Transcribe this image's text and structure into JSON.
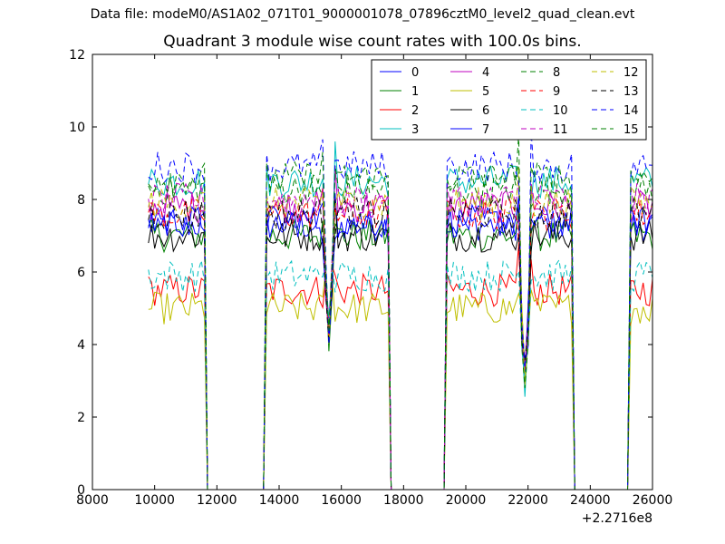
{
  "figure": {
    "suptitle": "Data file: modeM0/AS1A02_071T01_9000001078_07896cztM0_level2_quad_clean.evt"
  },
  "chart_data": {
    "type": "line",
    "title": "Quadrant 3 module wise count rates with 100.0s bins.",
    "xlabel": "",
    "ylabel": "",
    "xlim": [
      8000,
      26000
    ],
    "ylim": [
      0,
      12
    ],
    "x_offset_label": "+2.2716e8",
    "xticks": [
      8000,
      10000,
      12000,
      14000,
      16000,
      18000,
      20000,
      22000,
      24000,
      26000
    ],
    "xtick_labels": [
      "8000",
      "10000",
      "12000",
      "14000",
      "16000",
      "18000",
      "20000",
      "22000",
      "24000",
      "26000"
    ],
    "yticks": [
      0,
      2,
      4,
      6,
      8,
      10,
      12
    ],
    "ytick_labels": [
      "0",
      "2",
      "4",
      "6",
      "8",
      "10",
      "12"
    ],
    "grid": false,
    "legend_position": "top-right",
    "legend_columns": 4,
    "segments": [
      {
        "start": 9800,
        "end": 11600
      },
      {
        "start": 13600,
        "end": 17500
      },
      {
        "start": 19400,
        "end": 23400
      },
      {
        "start": 25300,
        "end": 26000
      }
    ],
    "dropouts": [
      {
        "x": 15600,
        "value": 4.3
      },
      {
        "x": 21900,
        "value": 3.0
      }
    ],
    "series": [
      {
        "name": "0",
        "color": "#0000ff",
        "dash": "solid",
        "level": 7.3
      },
      {
        "name": "1",
        "color": "#008000",
        "dash": "solid",
        "level": 7.0
      },
      {
        "name": "2",
        "color": "#ff0000",
        "dash": "solid",
        "level": 5.5
      },
      {
        "name": "3",
        "color": "#00bfbf",
        "dash": "solid",
        "level": 8.5
      },
      {
        "name": "4",
        "color": "#bf00bf",
        "dash": "solid",
        "level": 7.8
      },
      {
        "name": "5",
        "color": "#bfbf00",
        "dash": "solid",
        "level": 5.0
      },
      {
        "name": "6",
        "color": "#000000",
        "dash": "solid",
        "level": 7.0
      },
      {
        "name": "7",
        "color": "#0000ff",
        "dash": "solid",
        "level": 7.4
      },
      {
        "name": "8",
        "color": "#008000",
        "dash": "dashed",
        "level": 8.3
      },
      {
        "name": "9",
        "color": "#ff0000",
        "dash": "dashed",
        "level": 7.6
      },
      {
        "name": "10",
        "color": "#00bfbf",
        "dash": "dashed",
        "level": 5.9
      },
      {
        "name": "11",
        "color": "#bf00bf",
        "dash": "dashed",
        "level": 8.0
      },
      {
        "name": "12",
        "color": "#bfbf00",
        "dash": "dashed",
        "level": 7.9
      },
      {
        "name": "13",
        "color": "#000000",
        "dash": "dashed",
        "level": 7.6
      },
      {
        "name": "14",
        "color": "#0000ff",
        "dash": "dashed",
        "level": 8.9
      },
      {
        "name": "15",
        "color": "#008000",
        "dash": "dashed",
        "level": 8.6
      }
    ]
  }
}
